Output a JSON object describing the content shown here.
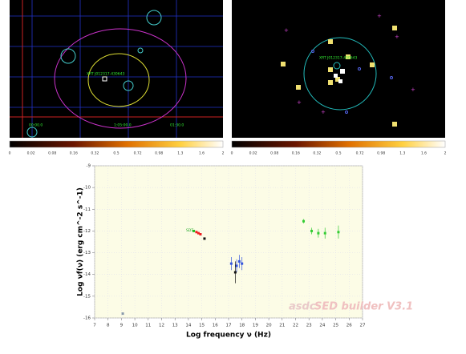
{
  "images": [
    {
      "labels": [
        "XRT J012317-430643",
        "00:00.0",
        "1:05:00.0",
        "01:30.0"
      ],
      "colorbar_labels": [
        "0",
        "0.02",
        "0.08",
        "0.16",
        "0.32",
        "0.5",
        "0.72",
        "0.98",
        "1.3",
        "1.6",
        "2"
      ]
    },
    {
      "labels": [
        "XRT J012317-430643"
      ],
      "colorbar_labels": [
        "0",
        "0.02",
        "0.08",
        "0.16",
        "0.32",
        "0.5",
        "0.72",
        "0.98",
        "1.3",
        "1.6",
        "2"
      ]
    }
  ],
  "chart_data": {
    "type": "scatter",
    "xlabel": "Log frequency ν (Hz)",
    "ylabel": "Log νf(ν) (erg cm^-2 s^-1)",
    "watermark": {
      "logo": "asdc",
      "text": "SED builder V3.1"
    },
    "annotations": [
      "SDT"
    ],
    "xlim": [
      7,
      27
    ],
    "ylim": [
      -16,
      -9
    ],
    "xticks": [
      7,
      8,
      9,
      10,
      11,
      12,
      13,
      14,
      15,
      16,
      17,
      18,
      19,
      20,
      21,
      22,
      23,
      24,
      25,
      26,
      27
    ],
    "yticks": [
      -9,
      -10,
      -11,
      -12,
      -13,
      -14,
      -15,
      -16
    ],
    "grid": true,
    "series": [
      {
        "color": "#8899aa",
        "x": [
          9.1
        ],
        "values": [
          -15.8
        ]
      },
      {
        "color": "#22bb22",
        "x": [
          14.4
        ],
        "values": [
          -12.0
        ]
      },
      {
        "color": "#ee2222",
        "x": [
          14.6,
          14.75,
          14.9
        ],
        "values": [
          -12.05,
          -12.1,
          -12.15
        ]
      },
      {
        "color": "#111111",
        "x": [
          15.2
        ],
        "values": [
          -12.35
        ]
      },
      {
        "color": "#3355dd",
        "x": [
          17.2,
          17.6,
          17.8,
          18.0
        ],
        "values": [
          -13.5,
          -13.6,
          -13.4,
          -13.5
        ],
        "errors": [
          0.3,
          0.3,
          0.3,
          0.3
        ]
      },
      {
        "color": "#111111",
        "x": [
          17.5
        ],
        "values": [
          -13.9
        ],
        "errors": [
          0.5
        ]
      },
      {
        "color": "#33cc33",
        "x": [
          22.6,
          23.2,
          23.7,
          24.2,
          25.2
        ],
        "values": [
          -11.55,
          -12.0,
          -12.1,
          -12.1,
          -12.05
        ],
        "errors": [
          0.1,
          0.15,
          0.2,
          0.25,
          0.3
        ]
      }
    ]
  }
}
